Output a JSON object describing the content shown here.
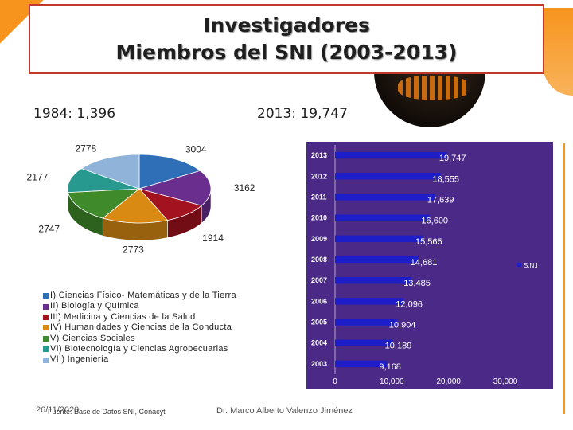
{
  "title": {
    "line1": "Investigadores",
    "line2": "Miembros del SNI (2003-2013)"
  },
  "stats": {
    "left": "1984: 1,396",
    "right": "2013: 19,747"
  },
  "colors": {
    "accent": "#f7941d",
    "title_border": "#c0392b",
    "bar_background": "#4b2a87",
    "bar_fill": "#1e1ec8"
  },
  "chart_data": [
    {
      "type": "pie",
      "style": "3d",
      "labels": [
        "I) Ciencias Físico- Matemáticas y de la Tierra",
        "II) Biología y Química",
        "III) Medicina y Ciencias de la Salud",
        "IV) Humanidades y Ciencias de la Conducta",
        "V) Ciencias Sociales",
        "VI) Biotecnología y Ciencias Agropecuarias",
        "VII) Ingeniería"
      ],
      "values": [
        3004,
        3162,
        1914,
        2773,
        2747,
        2177,
        2778
      ],
      "value_labels": [
        "3004",
        "3162",
        "1914",
        "2773",
        "2747",
        "2177",
        "2778"
      ],
      "colors": [
        "#2e6fb7",
        "#6a2e8f",
        "#a3131f",
        "#d98a13",
        "#3f8a2b",
        "#27998f",
        "#8fb3d9"
      ],
      "legend_position": "bottom"
    },
    {
      "type": "bar",
      "orientation": "horizontal",
      "categories": [
        "2013",
        "2012",
        "2011",
        "2010",
        "2009",
        "2008",
        "2007",
        "2006",
        "2005",
        "2004",
        "2003"
      ],
      "series": [
        {
          "name": "S.N.I",
          "values": [
            19747,
            18555,
            17639,
            16600,
            15565,
            14681,
            13485,
            12096,
            10904,
            10189,
            9168
          ],
          "value_labels": [
            "19,747",
            "18,555",
            "17,639",
            "16,600",
            "15,565",
            "14,681",
            "13,485",
            "12,096",
            "10,904",
            "10,189",
            "9,168"
          ]
        }
      ],
      "xlim": [
        0,
        30000
      ],
      "xticks": [
        0,
        10000,
        20000,
        30000
      ],
      "xtick_labels": [
        "0",
        "10,000",
        "20,000",
        "30,000"
      ],
      "legend_position": "right"
    }
  ],
  "footer": {
    "date": "26/11/2020",
    "source": "Fuente: Base de Datos SNI, Conacyt",
    "author": "Dr. Marco Alberto Valenzo Jiménez"
  }
}
